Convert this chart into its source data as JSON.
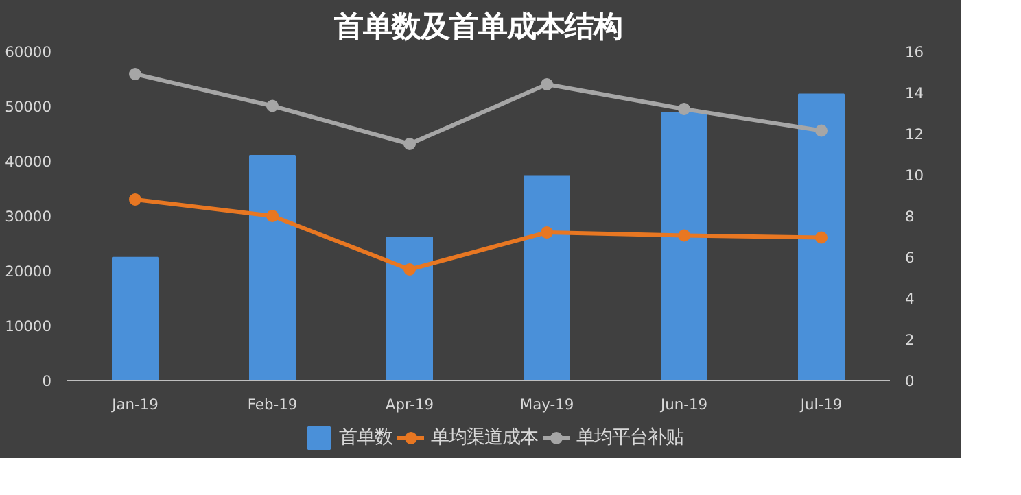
{
  "chart_data": {
    "type": "bar",
    "title": "首单数及首单成本结构",
    "categories": [
      "Jan-19",
      "Feb-19",
      "Apr-19",
      "May-19",
      "Jun-19",
      "Jul-19"
    ],
    "series": [
      {
        "name": "首单数",
        "color": "#4a90d9",
        "values": [
          22400,
          41000,
          26100,
          37300,
          48800,
          52200
        ]
      },
      {
        "name": "单均渠道成本",
        "type": "line",
        "axis": "y2",
        "color": "#e87722",
        "values": [
          8.8,
          8.0,
          5.4,
          7.2,
          7.05,
          6.95
        ]
      },
      {
        "name": "单均平台补贴",
        "type": "line",
        "axis": "y2",
        "color": "#a6a6a6",
        "values": [
          14.9,
          13.35,
          11.5,
          14.4,
          13.2,
          12.15
        ]
      }
    ],
    "ylim": [
      0,
      60000
    ],
    "yticks": [
      0,
      10000,
      20000,
      30000,
      40000,
      50000,
      60000
    ],
    "y2lim": [
      0,
      16
    ],
    "y2ticks": [
      0,
      2,
      4,
      6,
      8,
      10,
      12,
      14,
      16
    ],
    "grid": false,
    "legend": "bottom",
    "marker": "circle",
    "line_style": "solid"
  }
}
